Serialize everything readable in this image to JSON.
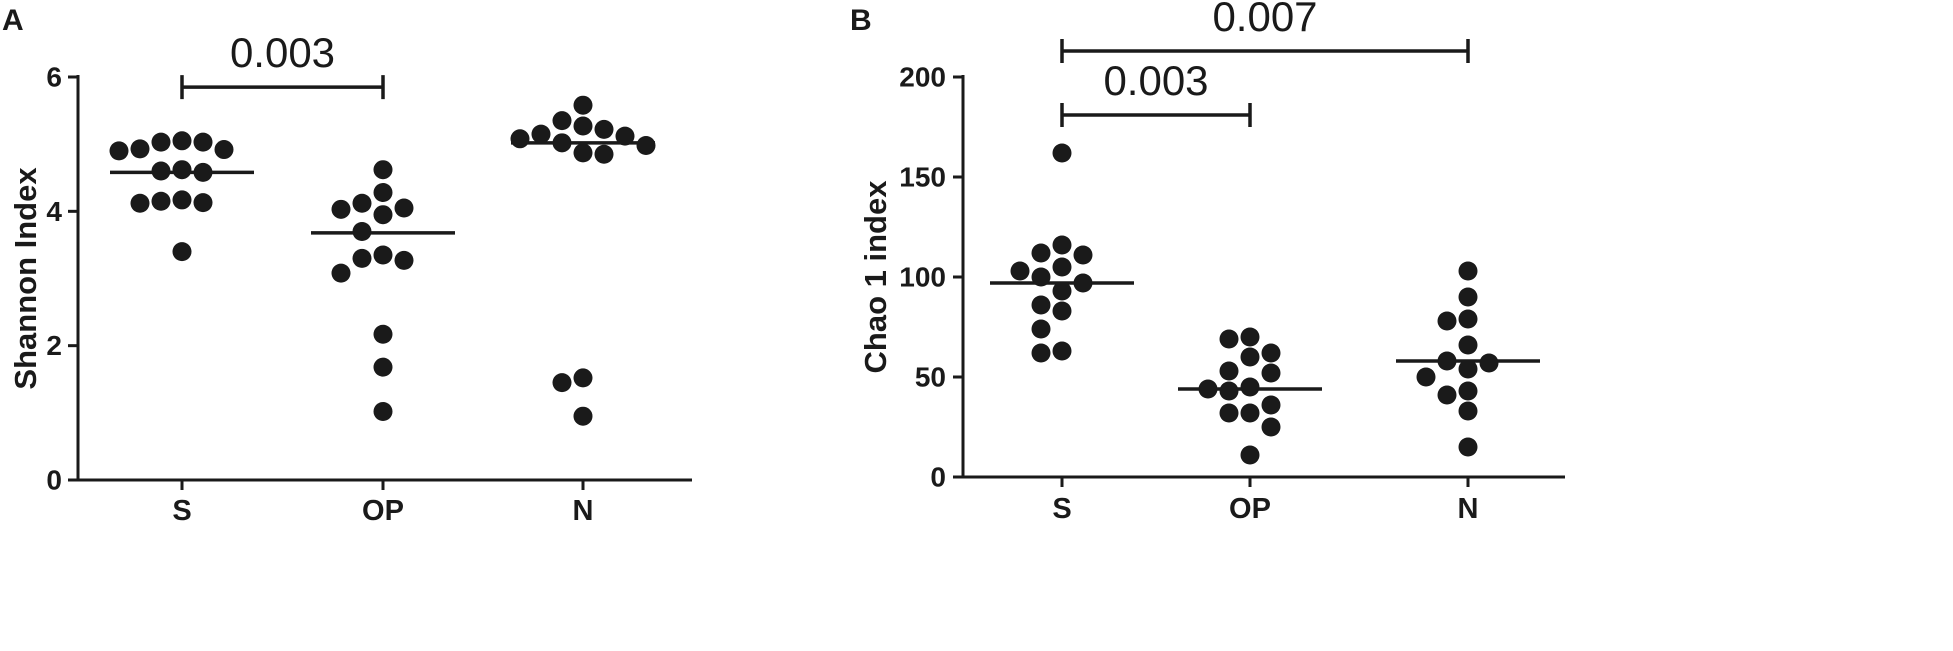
{
  "chart_data": [
    {
      "panel": "A",
      "type": "scatter",
      "ylabel": "Shannon Index",
      "ylim": [
        0,
        6
      ],
      "yticks": [
        0,
        2,
        4,
        6
      ],
      "categories": [
        "S",
        "OP",
        "N"
      ],
      "groups": [
        {
          "name": "S",
          "median": 4.58,
          "values": [
            5.03,
            5.05,
            4.92,
            4.93,
            5.03,
            4.9,
            4.62,
            4.6,
            4.58,
            4.17,
            4.13,
            4.12,
            4.15,
            3.4
          ]
        },
        {
          "name": "OP",
          "median": 3.68,
          "values": [
            4.62,
            4.28,
            4.12,
            4.05,
            4.03,
            3.95,
            3.7,
            3.35,
            3.3,
            3.27,
            3.08,
            2.17,
            1.68,
            1.02
          ]
        },
        {
          "name": "N",
          "median": 5.02,
          "values": [
            5.58,
            5.35,
            5.27,
            5.22,
            5.15,
            5.12,
            5.08,
            5.02,
            4.98,
            4.87,
            4.85,
            1.52,
            1.45,
            0.95
          ]
        }
      ],
      "comparisons": [
        {
          "from": "S",
          "to": "OP",
          "label": "0.003",
          "y": 5.85
        }
      ]
    },
    {
      "panel": "B",
      "type": "scatter",
      "ylabel": "Chao 1 index",
      "ylim": [
        0,
        200
      ],
      "yticks": [
        0,
        50,
        100,
        150,
        200
      ],
      "categories": [
        "S",
        "OP",
        "N"
      ],
      "groups": [
        {
          "name": "S",
          "median": 97,
          "values": [
            162,
            116,
            112,
            111,
            105,
            103,
            100,
            97,
            93,
            86,
            83,
            74,
            63,
            62
          ]
        },
        {
          "name": "OP",
          "median": 44,
          "values": [
            70,
            69,
            62,
            60,
            53,
            52,
            45,
            44,
            43,
            36,
            32,
            32,
            25,
            11
          ]
        },
        {
          "name": "N",
          "median": 58,
          "values": [
            103,
            90,
            79,
            78,
            66,
            58,
            57,
            54,
            50,
            43,
            41,
            33,
            15
          ]
        }
      ],
      "comparisons": [
        {
          "from": "S",
          "to": "OP",
          "label": "0.003",
          "y": 181
        },
        {
          "from": "S",
          "to": "N",
          "label": "0.007",
          "y": 213
        }
      ]
    }
  ]
}
